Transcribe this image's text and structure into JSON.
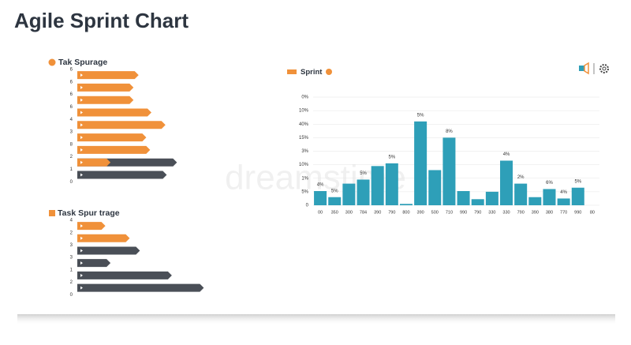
{
  "title": "Agile Sprint Chart",
  "watermark": "dreamstime",
  "chart_data": [
    {
      "type": "hbar",
      "title": "Tak Spurage",
      "title_color": "#f0913a",
      "categories": [
        "6",
        "6",
        "6",
        "6",
        "4",
        "3",
        "8",
        "2",
        "1",
        "0"
      ],
      "xlim": [
        0,
        100
      ],
      "series": [
        {
          "color": "#4a4f57",
          "values": [
            null,
            null,
            null,
            null,
            null,
            null,
            null,
            78,
            70,
            null
          ]
        },
        {
          "color": "#f0913a",
          "values": [
            48,
            44,
            44,
            58,
            69,
            54,
            57,
            26,
            null,
            null
          ]
        }
      ]
    },
    {
      "type": "hbar",
      "title": "Task Spur trage",
      "title_color": "#f0913a",
      "categories": [
        "4",
        "2",
        "3",
        "3",
        "1",
        "2",
        "0"
      ],
      "xlim": [
        0,
        100
      ],
      "series": [
        {
          "color": "#4a4f57",
          "values": [
            null,
            null,
            49,
            26,
            74,
            99,
            null
          ]
        },
        {
          "color": "#f0913a",
          "values": [
            22,
            41,
            null,
            null,
            null,
            null,
            null
          ]
        }
      ]
    },
    {
      "type": "bar",
      "legend": "top-left",
      "series": [
        {
          "name": "Sprint",
          "color": "#2e9fb8",
          "legend_color": "#f0913a",
          "values": [
            1.05,
            0.6,
            1.6,
            1.9,
            2.9,
            3.1,
            0.1,
            6.2,
            2.6,
            5.0,
            1.05,
            0.45,
            1.0,
            3.3,
            1.6,
            0.6,
            1.2,
            0.5,
            1.3,
            null
          ],
          "value_labels": [
            "4%",
            "5%",
            null,
            "5%",
            null,
            "5%",
            null,
            "5%",
            null,
            "8%",
            null,
            null,
            null,
            "4%",
            "2%",
            null,
            "6%",
            "4%",
            "5%",
            null
          ]
        }
      ],
      "categories": [
        "00",
        "350",
        "300",
        "784",
        "390",
        "790",
        "800",
        "390",
        "500",
        "710",
        "990",
        "790",
        "330",
        "330",
        "790",
        "390",
        "380",
        "770",
        "990",
        "80"
      ],
      "ylim": [
        0,
        8
      ],
      "yticks": [
        0,
        {
          "value": 1,
          "label": "5%"
        },
        {
          "value": 2,
          "label": "1%"
        },
        {
          "value": 3,
          "label": "10%"
        },
        {
          "value": 4,
          "label": "3%"
        },
        {
          "value": 5,
          "label": "15%"
        },
        {
          "value": 6,
          "label": "40%"
        },
        {
          "value": 7,
          "label": "10%"
        },
        {
          "value": 8,
          "label": "0%"
        }
      ],
      "grid": true
    }
  ]
}
